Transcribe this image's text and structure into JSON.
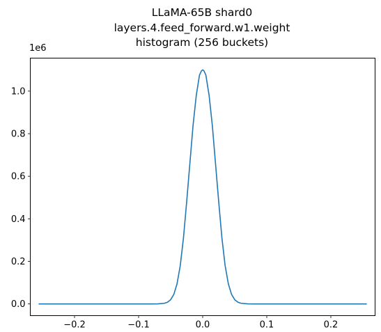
{
  "chart_data": {
    "type": "line",
    "title_lines": [
      "LLaMA-65B shard0",
      "layers.4.feed_forward.w1.weight",
      "histogram (256 buckets)"
    ],
    "xlabel": "",
    "ylabel": "",
    "y_offset_label": "1e6",
    "xlim": [
      -0.269,
      0.269
    ],
    "ylim": [
      -0.055,
      1.155
    ],
    "x_ticks": [
      -0.2,
      -0.1,
      0.0,
      0.1,
      0.2
    ],
    "x_tick_labels": [
      "−0.2",
      "−0.1",
      "0.0",
      "0.1",
      "0.2"
    ],
    "y_ticks": [
      0.0,
      0.2,
      0.4,
      0.6,
      0.8,
      1.0
    ],
    "y_tick_labels": [
      "0.0",
      "0.2",
      "0.4",
      "0.6",
      "0.8",
      "1.0"
    ],
    "grid": false,
    "series": [
      {
        "color": "#1f77b4",
        "x": [
          -0.256,
          -0.2,
          -0.15,
          -0.1,
          -0.08,
          -0.07,
          -0.06,
          -0.055,
          -0.05,
          -0.045,
          -0.04,
          -0.035,
          -0.03,
          -0.025,
          -0.02,
          -0.015,
          -0.01,
          -0.005,
          -0.002,
          0.0,
          0.002,
          0.005,
          0.01,
          0.015,
          0.02,
          0.025,
          0.03,
          0.035,
          0.04,
          0.045,
          0.05,
          0.055,
          0.06,
          0.07,
          0.08,
          0.1,
          0.15,
          0.2,
          0.256
        ],
        "y": [
          0.0,
          0.0,
          0.0,
          0.0,
          0.0,
          0.0005,
          0.003,
          0.008,
          0.02,
          0.045,
          0.095,
          0.18,
          0.31,
          0.48,
          0.66,
          0.84,
          0.98,
          1.075,
          1.095,
          1.1,
          1.095,
          1.075,
          0.98,
          0.84,
          0.66,
          0.48,
          0.31,
          0.18,
          0.095,
          0.045,
          0.02,
          0.008,
          0.003,
          0.0005,
          0.0,
          0.0,
          0.0,
          0.0,
          0.0
        ]
      }
    ]
  }
}
